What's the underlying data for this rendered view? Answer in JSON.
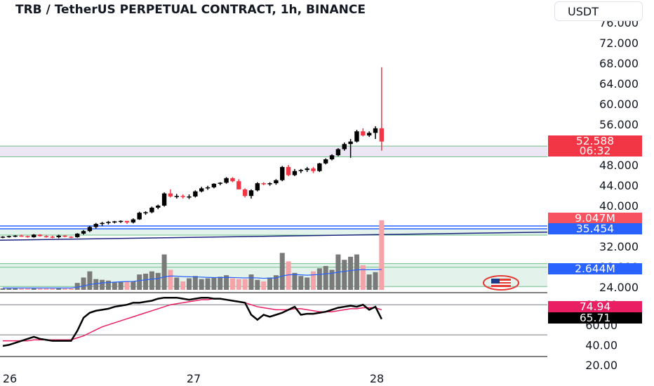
{
  "header": {
    "title": "TRB / TetherUS PERPETUAL CONTRACT, 1h, BINANCE",
    "currency": "USDT"
  },
  "colors": {
    "up": "#000000",
    "down": "#f23645",
    "volume_up": "#7a7a7a",
    "volume_down": "#f5a3a8",
    "volume_ma": "#2962ff",
    "trendline": "#1a237e",
    "osc_k": "#000000",
    "osc_d": "#e91e63",
    "zone_fill": "#e3f2ea",
    "price_zone": "#ece6f5"
  },
  "chart_data": {
    "type": "candlestick",
    "price_axis_ticks": [
      "76.000",
      "72.000",
      "68.000",
      "64.000",
      "60.000",
      "56.000",
      "52.000",
      "48.000",
      "44.000",
      "40.000",
      "36.000",
      "32.000",
      "28.000",
      "24.000"
    ],
    "osc_axis_ticks": [
      "80.00",
      "60.00",
      "40.00",
      "20.00"
    ],
    "time_labels": [
      "26",
      "27",
      "28"
    ],
    "ohlc": [
      [
        33.8,
        34.0,
        33.6,
        33.9
      ],
      [
        33.9,
        34.1,
        33.7,
        34.0
      ],
      [
        34.0,
        34.2,
        33.8,
        34.1
      ],
      [
        34.1,
        34.3,
        33.9,
        34.0
      ],
      [
        34.0,
        34.1,
        33.7,
        33.8
      ],
      [
        33.8,
        34.4,
        33.7,
        34.3
      ],
      [
        34.3,
        34.4,
        33.9,
        34.0
      ],
      [
        34.0,
        34.2,
        33.7,
        33.9
      ],
      [
        33.9,
        34.1,
        33.6,
        33.8
      ],
      [
        33.8,
        34.3,
        33.6,
        34.1
      ],
      [
        34.1,
        34.2,
        33.8,
        33.9
      ],
      [
        33.9,
        34.0,
        33.6,
        33.8
      ],
      [
        33.8,
        34.6,
        33.7,
        34.5
      ],
      [
        34.5,
        35.2,
        34.3,
        35.0
      ],
      [
        35.0,
        36.0,
        34.8,
        35.8
      ],
      [
        35.8,
        36.6,
        35.5,
        36.4
      ],
      [
        36.4,
        36.8,
        36.0,
        36.6
      ],
      [
        36.6,
        37.0,
        36.3,
        36.8
      ],
      [
        36.8,
        37.0,
        36.5,
        36.9
      ],
      [
        36.9,
        37.1,
        36.6,
        37.0
      ],
      [
        37.0,
        37.0,
        36.4,
        36.7
      ],
      [
        36.7,
        37.5,
        36.5,
        37.3
      ],
      [
        37.3,
        38.8,
        37.2,
        38.6
      ],
      [
        38.6,
        38.9,
        38.2,
        38.7
      ],
      [
        38.7,
        39.8,
        38.5,
        39.6
      ],
      [
        39.6,
        40.2,
        39.3,
        40.0
      ],
      [
        40.0,
        42.6,
        39.8,
        42.4
      ],
      [
        42.4,
        43.2,
        41.6,
        41.8
      ],
      [
        41.8,
        42.3,
        41.4,
        41.9
      ],
      [
        41.9,
        42.2,
        41.4,
        41.7
      ],
      [
        41.7,
        42.2,
        41.3,
        41.8
      ],
      [
        41.8,
        43.0,
        41.6,
        42.8
      ],
      [
        42.8,
        43.7,
        42.6,
        43.4
      ],
      [
        43.4,
        43.9,
        43.1,
        43.6
      ],
      [
        43.6,
        44.4,
        43.4,
        44.3
      ],
      [
        44.3,
        44.6,
        44.0,
        44.5
      ],
      [
        44.5,
        45.6,
        44.3,
        45.4
      ],
      [
        45.4,
        45.6,
        44.6,
        44.8
      ],
      [
        44.8,
        45.2,
        43.2,
        43.2
      ],
      [
        43.2,
        43.4,
        41.6,
        41.9
      ],
      [
        41.9,
        43.2,
        41.4,
        43.0
      ],
      [
        43.0,
        44.6,
        42.8,
        44.4
      ],
      [
        44.4,
        44.6,
        44.0,
        44.2
      ],
      [
        44.2,
        44.6,
        43.9,
        44.4
      ],
      [
        44.4,
        45.2,
        44.1,
        45.0
      ],
      [
        45.0,
        47.8,
        44.8,
        47.6
      ],
      [
        47.6,
        48.0,
        45.8,
        46.0
      ],
      [
        46.0,
        47.2,
        45.8,
        46.8
      ],
      [
        46.8,
        47.2,
        46.4,
        47.0
      ],
      [
        47.0,
        47.6,
        46.6,
        47.3
      ],
      [
        47.3,
        47.6,
        46.4,
        46.8
      ],
      [
        46.8,
        48.4,
        46.6,
        48.3
      ],
      [
        48.3,
        49.3,
        48.1,
        49.1
      ],
      [
        49.1,
        50.1,
        48.9,
        49.9
      ],
      [
        49.9,
        51.3,
        49.7,
        51.1
      ],
      [
        51.1,
        52.4,
        50.8,
        52.1
      ],
      [
        52.1,
        53.1,
        49.4,
        52.6
      ],
      [
        52.6,
        54.9,
        52.4,
        54.6
      ],
      [
        54.6,
        55.2,
        53.6,
        53.8
      ],
      [
        53.8,
        54.6,
        53.5,
        54.3
      ],
      [
        54.3,
        55.6,
        53.1,
        55.2
      ],
      [
        55.2,
        67.2,
        50.8,
        52.6
      ]
    ],
    "volumes": [
      0.2,
      0.2,
      0.2,
      0.2,
      0.2,
      0.2,
      0.2,
      0.2,
      0.2,
      0.2,
      0.2,
      0.2,
      0.9,
      1.6,
      2.4,
      1.4,
      1.3,
      1.2,
      1.0,
      1.1,
      1.1,
      1.1,
      2.0,
      2.1,
      2.4,
      2.2,
      4.6,
      2.6,
      1.6,
      1.1,
      1.5,
      1.8,
      1.4,
      1.5,
      1.6,
      1.7,
      1.9,
      1.5,
      1.4,
      1.4,
      2.0,
      1.3,
      1.1,
      1.6,
      1.9,
      4.8,
      3.7,
      2.2,
      1.8,
      1.6,
      2.4,
      2.8,
      3.1,
      2.6,
      4.6,
      3.9,
      4.3,
      4.6,
      3.2,
      2.0,
      2.3,
      9.047
    ],
    "volume_ma": [
      0.25,
      0.25,
      0.25,
      0.25,
      0.25,
      0.25,
      0.25,
      0.25,
      0.25,
      0.25,
      0.25,
      0.25,
      0.35,
      0.5,
      0.7,
      0.8,
      0.9,
      0.95,
      1.0,
      1.05,
      1.08,
      1.1,
      1.2,
      1.3,
      1.4,
      1.45,
      1.7,
      1.8,
      1.78,
      1.72,
      1.7,
      1.68,
      1.65,
      1.62,
      1.6,
      1.6,
      1.62,
      1.6,
      1.58,
      1.55,
      1.58,
      1.55,
      1.5,
      1.52,
      1.55,
      1.8,
      1.95,
      1.98,
      1.95,
      1.9,
      1.95,
      2.0,
      2.1,
      2.15,
      2.3,
      2.4,
      2.5,
      2.6,
      2.62,
      2.62,
      2.62,
      2.644
    ],
    "volume_max_scale": 9.3,
    "oscillator_k": [
      39,
      40,
      42,
      44,
      46,
      48,
      46,
      45,
      44,
      44,
      44,
      44,
      54,
      67,
      72,
      74,
      75,
      76,
      78,
      79,
      80,
      82,
      82,
      83,
      84,
      86,
      87,
      87,
      87,
      86,
      85,
      86,
      87,
      87,
      86,
      86,
      85,
      84,
      83,
      82,
      70,
      65,
      70,
      68,
      70,
      72,
      75,
      78,
      70,
      71,
      71,
      72,
      73,
      75,
      77,
      78,
      79,
      78,
      80,
      75,
      78,
      65.71
    ],
    "oscillator_d": [
      44,
      44,
      44,
      44,
      44,
      45,
      45,
      45,
      45,
      45,
      45,
      45,
      47,
      49,
      52,
      55,
      58,
      60,
      62,
      64,
      66,
      68,
      70,
      72,
      74,
      76,
      78,
      80,
      81,
      82,
      83,
      84,
      85,
      85,
      86,
      86,
      85,
      84,
      83,
      82,
      80,
      78,
      77,
      76,
      75,
      75,
      75,
      76,
      76,
      75,
      74,
      73,
      73,
      73,
      74,
      75,
      76,
      76,
      77,
      77,
      77,
      74.94
    ],
    "horizontal_lines": [
      51.7,
      49.6,
      36.0,
      35.454,
      34.2,
      28.6,
      27.9,
      24.1
    ],
    "trendline": {
      "from_price": 33.2,
      "to_price": 34.8
    },
    "last_price": {
      "value": "52.588",
      "countdown": "06:32"
    },
    "volume_label": "9.047M",
    "level_label": "35.454",
    "volume_ma_label": "2.644M",
    "osc_labels": {
      "d": "74.94",
      "k": "65.71"
    }
  }
}
